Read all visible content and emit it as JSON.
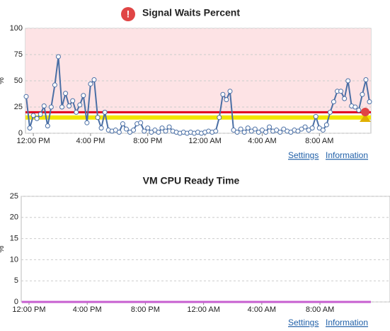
{
  "chart_data": [
    {
      "type": "line",
      "title": "Signal Waits Percent",
      "ylabel": "%",
      "color": "#4a6fa5",
      "markers": true,
      "categories": [
        null,
        null,
        "12:00 PM",
        null,
        null,
        null,
        null,
        null,
        null,
        null,
        null,
        null,
        null,
        null,
        null,
        null,
        null,
        null,
        "4:00 PM",
        null,
        null,
        null,
        null,
        null,
        null,
        null,
        null,
        null,
        null,
        null,
        null,
        null,
        null,
        null,
        "8:00 PM",
        null,
        null,
        null,
        null,
        null,
        null,
        null,
        null,
        null,
        null,
        null,
        null,
        null,
        null,
        null,
        "12:00 AM",
        null,
        null,
        null,
        null,
        null,
        null,
        null,
        null,
        null,
        null,
        null,
        null,
        null,
        null,
        null,
        "4:00 AM",
        null,
        null,
        null,
        null,
        null,
        null,
        null,
        null,
        null,
        null,
        null,
        null,
        null,
        null,
        null,
        "8:00 AM",
        null,
        null,
        null,
        null,
        null,
        null,
        null,
        null,
        null,
        null,
        null,
        null,
        null,
        null
      ],
      "values": [
        35,
        5,
        17,
        14,
        18,
        26,
        7,
        25,
        46,
        73,
        25,
        38,
        26,
        31,
        20,
        27,
        36,
        10,
        47,
        51,
        15,
        5,
        20,
        3,
        2,
        3,
        1,
        9,
        4,
        1,
        3,
        9,
        10,
        2,
        5,
        1,
        3,
        1,
        5,
        2,
        6,
        2,
        1,
        0,
        1,
        0,
        1,
        0,
        1,
        0,
        1,
        2,
        1,
        2,
        15,
        37,
        32,
        40,
        3,
        1,
        4,
        1,
        5,
        2,
        4,
        1,
        3,
        1,
        6,
        2,
        3,
        1,
        4,
        2,
        1,
        3,
        2,
        4,
        6,
        3,
        5,
        16,
        5,
        3,
        8,
        20,
        30,
        40,
        40,
        33,
        50,
        26,
        25,
        22,
        37,
        51,
        30
      ],
      "ylim": [
        0,
        100
      ],
      "yticks": [
        0,
        25,
        50,
        75,
        100
      ],
      "grid": true,
      "thresholds": [
        {
          "value": 15,
          "color": "#f2e600"
        },
        {
          "value": 20,
          "color": "#e0001b"
        }
      ]
    },
    {
      "type": "line",
      "title": "VM CPU Ready Time",
      "ylabel": "%",
      "color": "#c75fd0",
      "markers": false,
      "categories": [
        null,
        null,
        "12:00 PM",
        null,
        null,
        null,
        null,
        null,
        null,
        null,
        null,
        null,
        null,
        null,
        null,
        null,
        null,
        null,
        "4:00 PM",
        null,
        null,
        null,
        null,
        null,
        null,
        null,
        null,
        null,
        null,
        null,
        null,
        null,
        null,
        null,
        "8:00 PM",
        null,
        null,
        null,
        null,
        null,
        null,
        null,
        null,
        null,
        null,
        null,
        null,
        null,
        null,
        null,
        "12:00 AM",
        null,
        null,
        null,
        null,
        null,
        null,
        null,
        null,
        null,
        null,
        null,
        null,
        null,
        null,
        null,
        "4:00 AM",
        null,
        null,
        null,
        null,
        null,
        null,
        null,
        null,
        null,
        null,
        null,
        null,
        null,
        null,
        null,
        "8:00 AM",
        null,
        null,
        null,
        null,
        null,
        null,
        null,
        null,
        null,
        null,
        null,
        null,
        null,
        null
      ],
      "values": [
        0,
        0,
        0,
        0,
        0,
        0,
        0,
        0,
        0,
        0,
        0,
        0,
        0,
        0,
        0,
        0,
        0,
        0,
        0,
        0,
        0,
        0,
        0,
        0,
        0,
        0,
        0,
        0,
        0,
        0,
        0,
        0,
        0,
        0,
        0,
        0,
        0,
        0,
        0,
        0,
        0,
        0,
        0,
        0,
        0,
        0,
        0,
        0,
        0,
        0,
        0,
        0,
        0,
        0,
        0,
        0,
        0,
        0,
        0,
        0,
        0,
        0,
        0,
        0,
        0,
        0,
        0,
        0,
        0,
        0,
        0,
        0,
        0,
        0,
        0,
        0,
        0,
        0,
        0,
        0,
        0,
        0,
        0,
        0,
        0,
        0,
        0,
        0,
        0,
        0,
        0,
        0,
        0,
        0,
        0,
        0,
        0
      ],
      "ylim": [
        0,
        25
      ],
      "yticks": [
        0,
        5,
        10,
        15,
        20,
        25
      ],
      "grid": true
    }
  ],
  "links": [
    [
      "Settings",
      "Information"
    ],
    [
      "Settings",
      "Information"
    ]
  ]
}
